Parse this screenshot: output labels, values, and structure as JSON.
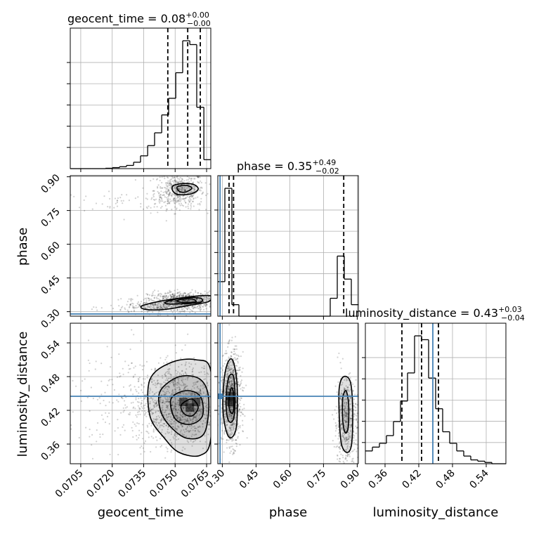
{
  "chart_data": {
    "type": "corner",
    "parameters": [
      "geocent_time",
      "phase",
      "luminosity_distance"
    ],
    "titles": {
      "geocent_time": {
        "prefix": "geocent_time = 0.08",
        "sup": "+0.00",
        "sub": "−0.00"
      },
      "phase": {
        "prefix": "phase = 0.35",
        "sup": "+0.49",
        "sub": "−0.02"
      },
      "luminosity_distance": {
        "prefix": "luminosity_distance = 0.43",
        "sup": "+0.03",
        "sub": "−0.04"
      }
    },
    "axis_labels": {
      "geocent_time": "geocent_time",
      "phase": "phase",
      "luminosity_distance": "luminosity_distance"
    },
    "ranges": {
      "geocent_time": [
        0.07,
        0.0767
      ],
      "phase": [
        0.28,
        0.905
      ],
      "luminosity_distance": [
        0.325,
        0.575
      ]
    },
    "tick_labels": {
      "geocent_time": [
        "0.0705",
        "0.0720",
        "0.0735",
        "0.0750",
        "0.0765"
      ],
      "phase": [
        "0.30",
        "0.45",
        "0.60",
        "0.75",
        "0.90"
      ],
      "luminosity_distance": [
        "0.36",
        "0.42",
        "0.48",
        "0.54"
      ]
    },
    "truths": {
      "geocent_time": null,
      "phase": 0.29,
      "luminosity_distance": 0.445
    },
    "quantiles": {
      "geocent_time": [
        0.07465,
        0.0756,
        0.0762
      ],
      "phase": [
        0.33,
        0.35,
        0.84
      ],
      "luminosity_distance": [
        0.39,
        0.425,
        0.455
      ]
    },
    "histograms": {
      "geocent_time": {
        "edges": [
          0.07,
          0.07034,
          0.07067,
          0.07101,
          0.07134,
          0.07168,
          0.07201,
          0.07235,
          0.07268,
          0.07302,
          0.07335,
          0.07369,
          0.07402,
          0.07436,
          0.07469,
          0.07503,
          0.07536,
          0.0757,
          0.07603,
          0.07637,
          0.0767
        ],
        "counts": [
          0,
          0,
          0,
          0,
          0,
          0.3,
          0.8,
          1.5,
          2.5,
          5,
          10,
          18,
          28,
          42,
          55,
          75,
          100,
          97,
          48,
          7
        ]
      },
      "phase": {
        "edges": [
          0.28,
          0.3113,
          0.3425,
          0.3738,
          0.405,
          0.4363,
          0.4675,
          0.4988,
          0.53,
          0.5613,
          0.5925,
          0.6238,
          0.655,
          0.6863,
          0.7175,
          0.7488,
          0.78,
          0.8113,
          0.8425,
          0.8738,
          0.905
        ],
        "counts": [
          27,
          100,
          9,
          0,
          0,
          0,
          0,
          0,
          0,
          0,
          0,
          0,
          0,
          0,
          0,
          0,
          14,
          47,
          29,
          9
        ]
      },
      "luminosity_distance": {
        "edges": [
          0.325,
          0.3375,
          0.35,
          0.3625,
          0.375,
          0.3875,
          0.4,
          0.4125,
          0.425,
          0.4375,
          0.45,
          0.4625,
          0.475,
          0.4875,
          0.5,
          0.5125,
          0.525,
          0.5375,
          0.55,
          0.5625,
          0.575
        ],
        "counts": [
          10,
          13,
          16,
          22,
          33,
          49,
          71,
          100,
          97,
          67,
          43,
          25,
          16,
          10,
          6,
          3,
          2,
          1,
          0,
          0
        ]
      }
    },
    "blobs": {
      "geocent_time|phase": [
        {
          "x": 0.0752,
          "y": 0.84,
          "sx": 0.0006,
          "sy": 0.04,
          "w": 0.33
        },
        {
          "x": 0.074,
          "y": 0.79,
          "sx": 0.0025,
          "sy": 0.02,
          "w": 0.07
        },
        {
          "x": 0.0753,
          "y": 0.35,
          "sx": 0.0008,
          "sy": 0.02,
          "w": 0.45
        },
        {
          "x": 0.0742,
          "y": 0.32,
          "sx": 0.0012,
          "sy": 0.015,
          "w": 0.15
        }
      ],
      "geocent_time|luminosity_distance": [
        {
          "x": 0.0752,
          "y": 0.43,
          "sx": 0.0011,
          "sy": 0.035,
          "w": 0.8
        },
        {
          "x": 0.0738,
          "y": 0.44,
          "sx": 0.002,
          "sy": 0.05,
          "w": 0.2
        }
      ],
      "phase|luminosity_distance": [
        {
          "x": 0.34,
          "y": 0.44,
          "sx": 0.022,
          "sy": 0.04,
          "w": 0.65
        },
        {
          "x": 0.85,
          "y": 0.4,
          "sx": 0.025,
          "sy": 0.04,
          "w": 0.35
        }
      ]
    },
    "contours": {
      "geocent_time|phase": [
        [
          [
            0.0749,
            0.86
          ],
          [
            0.0754,
            0.87
          ],
          [
            0.0759,
            0.865
          ],
          [
            0.0761,
            0.845
          ],
          [
            0.0758,
            0.825
          ],
          [
            0.0752,
            0.82
          ],
          [
            0.0749,
            0.835
          ]
        ],
        [
          [
            0.0751,
            0.855
          ],
          [
            0.0755,
            0.862
          ],
          [
            0.0758,
            0.85
          ],
          [
            0.0755,
            0.832
          ],
          [
            0.0752,
            0.835
          ]
        ],
        [
          [
            0.0734,
            0.325
          ],
          [
            0.0742,
            0.345
          ],
          [
            0.0752,
            0.36
          ],
          [
            0.0761,
            0.37
          ],
          [
            0.0767,
            0.37
          ],
          [
            0.0766,
            0.345
          ],
          [
            0.0758,
            0.33
          ],
          [
            0.0745,
            0.31
          ],
          [
            0.0736,
            0.31
          ]
        ],
        [
          [
            0.0746,
            0.345
          ],
          [
            0.0754,
            0.362
          ],
          [
            0.0762,
            0.36
          ],
          [
            0.0762,
            0.342
          ],
          [
            0.0753,
            0.335
          ],
          [
            0.0746,
            0.335
          ]
        ],
        [
          [
            0.0751,
            0.35
          ],
          [
            0.0757,
            0.358
          ],
          [
            0.076,
            0.345
          ],
          [
            0.0754,
            0.34
          ]
        ]
      ],
      "geocent_time|luminosity_distance": [
        [
          [
            0.0738,
            0.475
          ],
          [
            0.0748,
            0.505
          ],
          [
            0.076,
            0.51
          ],
          [
            0.0767,
            0.49
          ],
          [
            0.0767,
            0.37
          ],
          [
            0.0762,
            0.34
          ],
          [
            0.0752,
            0.345
          ],
          [
            0.0745,
            0.37
          ],
          [
            0.0738,
            0.41
          ]
        ],
        [
          [
            0.0743,
            0.455
          ],
          [
            0.0752,
            0.48
          ],
          [
            0.0762,
            0.475
          ],
          [
            0.0766,
            0.44
          ],
          [
            0.0764,
            0.38
          ],
          [
            0.0756,
            0.37
          ],
          [
            0.0748,
            0.39
          ],
          [
            0.0743,
            0.42
          ]
        ],
        [
          [
            0.0748,
            0.44
          ],
          [
            0.0755,
            0.455
          ],
          [
            0.0762,
            0.445
          ],
          [
            0.0763,
            0.41
          ],
          [
            0.0757,
            0.395
          ],
          [
            0.075,
            0.405
          ]
        ],
        [
          [
            0.0753,
            0.43
          ],
          [
            0.0758,
            0.44
          ],
          [
            0.0761,
            0.425
          ],
          [
            0.0758,
            0.41
          ],
          [
            0.0754,
            0.415
          ]
        ]
      ],
      "phase|luminosity_distance": [
        [
          [
            0.305,
            0.46
          ],
          [
            0.32,
            0.5
          ],
          [
            0.345,
            0.51
          ],
          [
            0.365,
            0.47
          ],
          [
            0.365,
            0.4
          ],
          [
            0.35,
            0.375
          ],
          [
            0.325,
            0.375
          ],
          [
            0.305,
            0.41
          ]
        ],
        [
          [
            0.318,
            0.45
          ],
          [
            0.33,
            0.48
          ],
          [
            0.35,
            0.48
          ],
          [
            0.357,
            0.44
          ],
          [
            0.35,
            0.405
          ],
          [
            0.33,
            0.4
          ],
          [
            0.318,
            0.42
          ]
        ],
        [
          [
            0.33,
            0.44
          ],
          [
            0.34,
            0.46
          ],
          [
            0.35,
            0.45
          ],
          [
            0.35,
            0.42
          ],
          [
            0.34,
            0.415
          ],
          [
            0.33,
            0.425
          ]
        ],
        [
          [
            0.82,
            0.46
          ],
          [
            0.84,
            0.48
          ],
          [
            0.87,
            0.47
          ],
          [
            0.88,
            0.42
          ],
          [
            0.875,
            0.36
          ],
          [
            0.855,
            0.345
          ],
          [
            0.83,
            0.36
          ],
          [
            0.82,
            0.41
          ]
        ],
        [
          [
            0.835,
            0.44
          ],
          [
            0.85,
            0.455
          ],
          [
            0.862,
            0.43
          ],
          [
            0.86,
            0.39
          ],
          [
            0.847,
            0.38
          ],
          [
            0.836,
            0.4
          ]
        ]
      ]
    },
    "density_peaks": {
      "geocent_time|luminosity_distance": [
        [
          0.0757,
          0.425
        ],
        [
          0.0754,
          0.435
        ],
        [
          0.076,
          0.435
        ]
      ],
      "phase|luminosity_distance": [
        [
          0.34,
          0.435
        ],
        [
          0.335,
          0.445
        ]
      ]
    },
    "colors": {
      "truth": "#4682b4",
      "line": "#000000",
      "grid": "#b0b0b0",
      "points": "#000000"
    },
    "grid": true
  }
}
